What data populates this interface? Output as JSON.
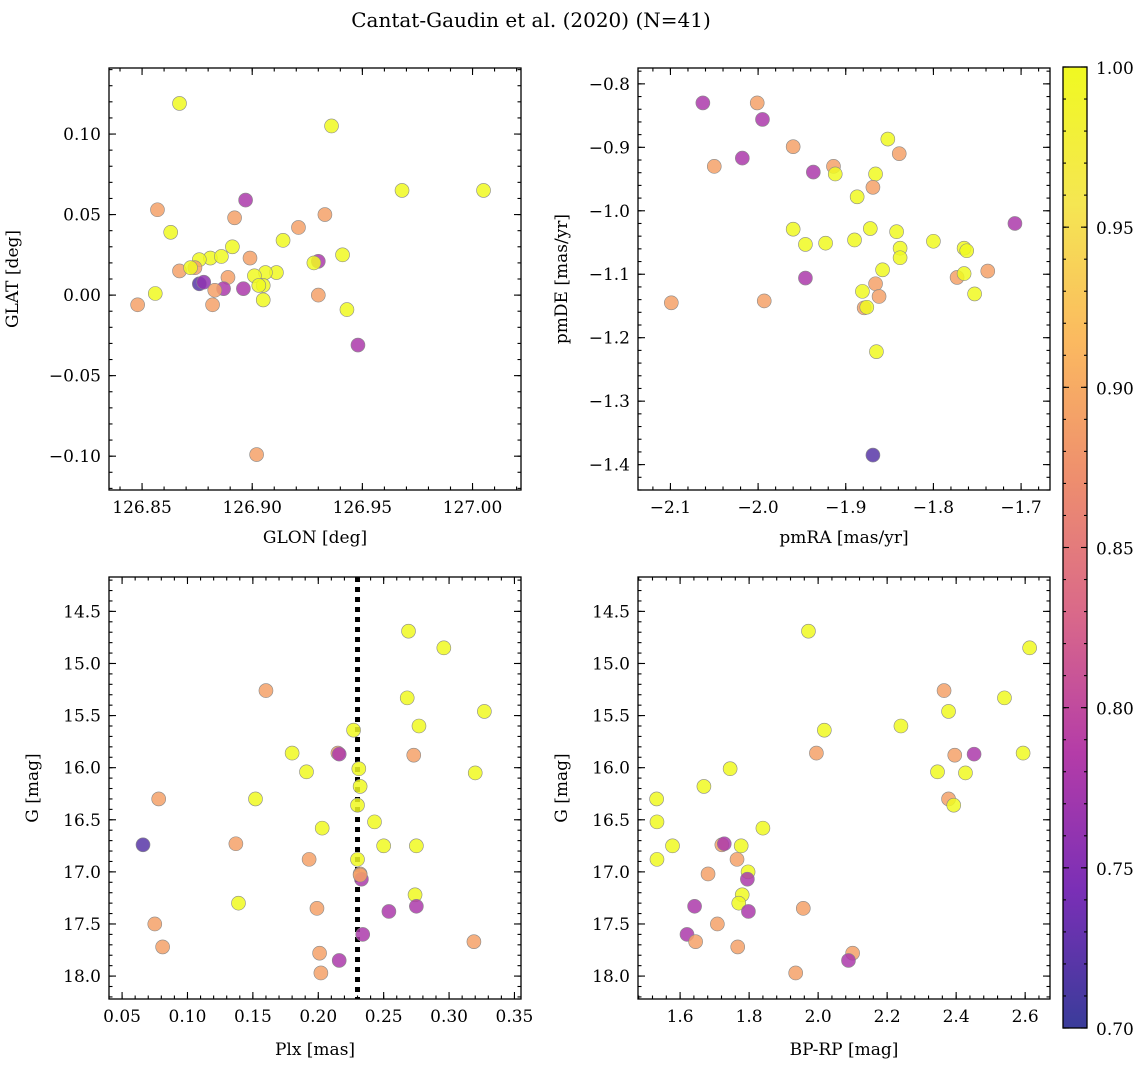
{
  "title": "Cantat-Gaudin et al. (2020) (N=41)",
  "chart_data": [
    {
      "type": "scatter",
      "id": "glon-glat",
      "xlabel": "GLON [deg]",
      "ylabel": "GLAT [deg]",
      "xlim": [
        126.835,
        127.022
      ],
      "ylim": [
        -0.121,
        0.141
      ],
      "xticks": [
        126.85,
        126.9,
        126.95,
        127.0
      ],
      "xtick_labels": [
        "126.85",
        "126.90",
        "126.95",
        "127.00"
      ],
      "yticks": [
        -0.1,
        -0.05,
        0.0,
        0.05,
        0.1
      ],
      "ytick_labels": [
        "−0.10",
        "−0.05",
        "0.00",
        "0.05",
        "0.10"
      ],
      "x": [
        126.867,
        126.936,
        127.005,
        126.968,
        126.857,
        126.863,
        126.897,
        126.892,
        126.933,
        126.921,
        126.914,
        126.891,
        126.899,
        126.881,
        126.876,
        126.886,
        126.874,
        126.93,
        126.928,
        126.941,
        126.867,
        126.872,
        126.856,
        126.848,
        126.876,
        126.878,
        126.889,
        126.887,
        126.896,
        126.883,
        126.882,
        126.911,
        126.906,
        126.901,
        126.905,
        126.903,
        126.905,
        126.943,
        126.93,
        126.948,
        126.902
      ],
      "y": [
        0.119,
        0.105,
        0.065,
        0.065,
        0.053,
        0.039,
        0.059,
        0.048,
        0.05,
        0.042,
        0.034,
        0.03,
        0.023,
        0.023,
        0.022,
        0.024,
        0.017,
        0.021,
        0.02,
        0.025,
        0.015,
        0.017,
        0.001,
        -0.006,
        0.007,
        0.008,
        0.011,
        0.004,
        0.004,
        0.003,
        -0.006,
        0.014,
        0.014,
        0.012,
        0.006,
        0.006,
        -0.003,
        -0.009,
        0.0,
        -0.031,
        -0.099
      ],
      "p": [
        1.0,
        1.0,
        1.0,
        1.0,
        0.89,
        1.0,
        0.78,
        0.89,
        0.89,
        0.89,
        1.0,
        1.0,
        0.89,
        1.0,
        1.0,
        1.0,
        0.89,
        0.78,
        1.0,
        1.0,
        0.89,
        1.0,
        1.0,
        0.89,
        0.72,
        0.76,
        0.89,
        0.78,
        0.78,
        0.89,
        0.89,
        1.0,
        1.0,
        1.0,
        1.0,
        1.0,
        1.0,
        1.0,
        0.89,
        0.78,
        0.89
      ]
    },
    {
      "type": "scatter",
      "id": "pmra-pmde",
      "xlabel": "pmRA [mas/yr]",
      "ylabel": "pmDE [mas/yr]",
      "xlim": [
        -2.137,
        -1.667
      ],
      "ylim": [
        -1.44,
        -0.775
      ],
      "xticks": [
        -2.1,
        -2.0,
        -1.9,
        -1.8,
        -1.7
      ],
      "xtick_labels": [
        "−2.1",
        "−2.0",
        "−1.9",
        "−1.8",
        "−1.7"
      ],
      "yticks": [
        -1.4,
        -1.3,
        -1.2,
        -1.1,
        -1.0,
        -0.9,
        -0.8
      ],
      "ytick_labels": [
        "−1.4",
        "−1.3",
        "−1.2",
        "−1.1",
        "−1.0",
        "−0.9",
        "−0.8"
      ],
      "x": [
        -2.063,
        -2.001,
        -1.995,
        -1.96,
        -2.018,
        -2.05,
        -1.852,
        -1.839,
        -1.914,
        -1.912,
        -1.937,
        -1.866,
        -1.869,
        -1.887,
        -1.707,
        -1.96,
        -1.923,
        -1.946,
        -1.89,
        -1.872,
        -1.842,
        -1.838,
        -1.8,
        -1.765,
        -1.762,
        -1.838,
        -1.858,
        -1.866,
        -1.862,
        -1.738,
        -1.773,
        -1.765,
        -1.753,
        -1.881,
        -1.879,
        -1.876,
        -1.865,
        -1.993,
        -2.099,
        -1.946,
        -1.869
      ],
      "y": [
        -0.83,
        -0.83,
        -0.856,
        -0.899,
        -0.917,
        -0.93,
        -0.887,
        -0.91,
        -0.93,
        -0.942,
        -0.939,
        -0.942,
        -0.963,
        -0.978,
        -1.02,
        -1.029,
        -1.051,
        -1.053,
        -1.046,
        -1.028,
        -1.033,
        -1.059,
        -1.048,
        -1.059,
        -1.063,
        -1.074,
        -1.093,
        -1.115,
        -1.135,
        -1.095,
        -1.105,
        -1.099,
        -1.131,
        -1.127,
        -1.153,
        -1.152,
        -1.222,
        -1.142,
        -1.145,
        -1.106,
        -1.385
      ],
      "p": [
        0.78,
        0.89,
        0.78,
        0.89,
        0.78,
        0.89,
        1.0,
        0.89,
        0.89,
        1.0,
        0.78,
        1.0,
        0.89,
        1.0,
        0.78,
        1.0,
        1.0,
        1.0,
        1.0,
        1.0,
        1.0,
        1.0,
        1.0,
        1.0,
        1.0,
        1.0,
        1.0,
        0.89,
        0.89,
        0.89,
        0.89,
        1.0,
        1.0,
        1.0,
        0.89,
        1.0,
        1.0,
        0.89,
        0.89,
        0.78,
        0.72
      ]
    },
    {
      "type": "scatter",
      "id": "plx-g",
      "xlabel": "Plx [mas]",
      "ylabel": "G [mag]",
      "xlim": [
        0.04,
        0.355
      ],
      "ylim": [
        18.22,
        14.17
      ],
      "y_inverted": true,
      "vline": 0.23,
      "xticks": [
        0.05,
        0.1,
        0.15,
        0.2,
        0.25,
        0.3,
        0.35
      ],
      "xtick_labels": [
        "0.05",
        "0.10",
        "0.15",
        "0.20",
        "0.25",
        "0.30",
        "0.35"
      ],
      "yticks": [
        14.5,
        15.0,
        15.5,
        16.0,
        16.5,
        17.0,
        17.5,
        18.0
      ],
      "ytick_labels": [
        "14.5",
        "15.0",
        "15.5",
        "16.0",
        "16.5",
        "17.0",
        "17.5",
        "18.0"
      ],
      "x": [
        0.269,
        0.296,
        0.16,
        0.268,
        0.327,
        0.277,
        0.227,
        0.18,
        0.215,
        0.216,
        0.273,
        0.231,
        0.191,
        0.32,
        0.232,
        0.078,
        0.152,
        0.23,
        0.203,
        0.243,
        0.137,
        0.25,
        0.275,
        0.066,
        0.193,
        0.23,
        0.232,
        0.233,
        0.232,
        0.274,
        0.139,
        0.275,
        0.199,
        0.254,
        0.234,
        0.075,
        0.319,
        0.081,
        0.201,
        0.216,
        0.202
      ],
      "y": [
        14.69,
        14.85,
        15.26,
        15.33,
        15.46,
        15.6,
        15.64,
        15.86,
        15.86,
        15.87,
        15.88,
        16.01,
        16.04,
        16.05,
        16.18,
        16.3,
        16.3,
        16.36,
        16.58,
        16.52,
        16.73,
        16.75,
        16.75,
        16.74,
        16.88,
        16.88,
        17.02,
        17.07,
        17.03,
        17.22,
        17.3,
        17.33,
        17.35,
        17.38,
        17.6,
        17.5,
        17.67,
        17.72,
        17.78,
        17.85,
        17.97
      ],
      "p": [
        1.0,
        1.0,
        0.89,
        1.0,
        1.0,
        1.0,
        1.0,
        1.0,
        0.89,
        0.78,
        0.89,
        1.0,
        1.0,
        1.0,
        1.0,
        0.89,
        1.0,
        1.0,
        1.0,
        1.0,
        0.89,
        1.0,
        1.0,
        0.72,
        0.89,
        1.0,
        0.89,
        0.78,
        0.89,
        1.0,
        1.0,
        0.78,
        0.89,
        0.78,
        0.78,
        0.89,
        0.89,
        0.89,
        0.89,
        0.78,
        0.89
      ]
    },
    {
      "type": "scatter",
      "id": "bprp-g",
      "xlabel": "BP-RP [mag]",
      "ylabel": "G [mag]",
      "xlim": [
        1.478,
        2.672
      ],
      "ylim": [
        18.22,
        14.17
      ],
      "y_inverted": true,
      "xticks": [
        1.6,
        1.8,
        2.0,
        2.2,
        2.4,
        2.6
      ],
      "xtick_labels": [
        "1.6",
        "1.8",
        "2.0",
        "2.2",
        "2.4",
        "2.6"
      ],
      "yticks": [
        14.5,
        15.0,
        15.5,
        16.0,
        16.5,
        17.0,
        17.5,
        18.0
      ],
      "ytick_labels": [
        "14.5",
        "15.0",
        "15.5",
        "16.0",
        "16.5",
        "17.0",
        "17.5",
        "18.0"
      ],
      "x": [
        1.972,
        2.613,
        2.365,
        2.54,
        2.378,
        2.24,
        2.018,
        2.594,
        2.452,
        1.995,
        2.396,
        1.745,
        2.346,
        2.427,
        1.669,
        1.532,
        2.378,
        2.393,
        1.84,
        1.533,
        1.578,
        1.721,
        1.728,
        1.777,
        1.533,
        1.765,
        1.681,
        1.797,
        1.795,
        1.78,
        1.642,
        1.77,
        1.957,
        1.798,
        1.62,
        1.708,
        1.645,
        1.767,
        2.1,
        2.088,
        1.935
      ],
      "y": [
        14.69,
        14.85,
        15.26,
        15.33,
        15.46,
        15.6,
        15.64,
        15.86,
        15.87,
        15.86,
        15.88,
        16.01,
        16.04,
        16.05,
        16.18,
        16.3,
        16.3,
        16.36,
        16.58,
        16.52,
        16.75,
        16.74,
        16.73,
        16.75,
        16.88,
        16.88,
        17.02,
        17.0,
        17.07,
        17.22,
        17.33,
        17.3,
        17.35,
        17.38,
        17.6,
        17.5,
        17.67,
        17.72,
        17.78,
        17.85,
        17.97
      ],
      "p": [
        1.0,
        1.0,
        0.89,
        1.0,
        1.0,
        1.0,
        1.0,
        1.0,
        0.78,
        0.89,
        0.89,
        1.0,
        1.0,
        1.0,
        1.0,
        1.0,
        0.89,
        1.0,
        1.0,
        1.0,
        1.0,
        0.89,
        0.78,
        1.0,
        1.0,
        0.89,
        0.89,
        1.0,
        0.78,
        1.0,
        0.78,
        1.0,
        0.89,
        0.78,
        0.78,
        0.89,
        0.89,
        0.89,
        0.89,
        0.78,
        0.89
      ]
    }
  ],
  "colorbar": {
    "cmap": "plasma",
    "vmin": 0.7,
    "vmax": 1.0,
    "ticks": [
      0.7,
      0.75,
      0.8,
      0.85,
      0.9,
      0.95,
      1.0
    ],
    "tick_labels": [
      "0.70",
      "0.75",
      "0.80",
      "0.85",
      "0.90",
      "0.95",
      "1.00"
    ],
    "stops": [
      "#3a3c9a",
      "#7a2fb6",
      "#b43ca8",
      "#d9688a",
      "#ee8e6e",
      "#fbb960",
      "#f5e652",
      "#f0f921"
    ]
  }
}
